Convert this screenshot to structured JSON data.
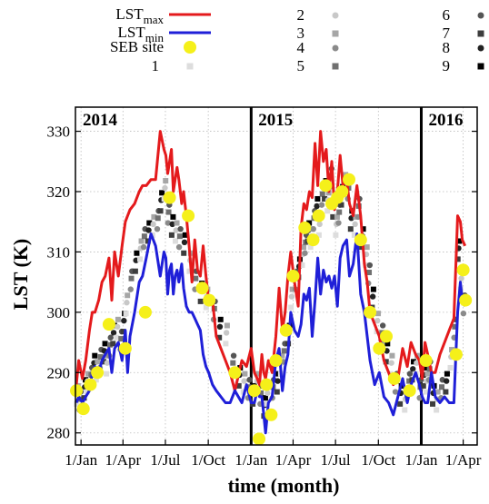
{
  "chart_data": {
    "type": "scatter",
    "xlabel": "time (month)",
    "ylabel": "LST (K)",
    "ylim": [
      278,
      334
    ],
    "xlim": [
      -12,
      850
    ],
    "x_unit": "days",
    "x_tick_labels": [
      {
        "label": "1/Jan",
        "x": 0
      },
      {
        "label": "1/Apr",
        "x": 90
      },
      {
        "label": "1/Jul",
        "x": 181
      },
      {
        "label": "1/Oct",
        "x": 273
      },
      {
        "label": "1/Jan",
        "x": 365
      },
      {
        "label": "1/Apr",
        "x": 455
      },
      {
        "label": "1/Jul",
        "x": 546
      },
      {
        "label": "1/Oct",
        "x": 638
      },
      {
        "label": "1/Jan",
        "x": 730
      },
      {
        "label": "1/Apr",
        "x": 820
      }
    ],
    "y_ticks": [
      280,
      290,
      300,
      310,
      320,
      330
    ],
    "grid": true,
    "year_labels": [
      {
        "label": "2014",
        "x": 0
      },
      {
        "label": "2015",
        "x": 365
      },
      {
        "label": "2016",
        "x": 730
      }
    ],
    "year_boundaries": [
      365,
      730
    ],
    "legend": {
      "placement": "top",
      "lines": [
        {
          "name": "LST",
          "sub": "max",
          "color": "#e41a1c"
        },
        {
          "name": "LST",
          "sub": "min",
          "color": "#1f1fd8"
        }
      ],
      "seb_label": "SEB site",
      "sites": [
        {
          "label": "1",
          "color": "#dddddd",
          "shape": "square"
        },
        {
          "label": "2",
          "color": "#c8c8c8",
          "shape": "circle"
        },
        {
          "label": "3",
          "color": "#a6a6a6",
          "shape": "square"
        },
        {
          "label": "4",
          "color": "#8a8a8a",
          "shape": "circle"
        },
        {
          "label": "5",
          "color": "#707070",
          "shape": "square"
        },
        {
          "label": "6",
          "color": "#555555",
          "shape": "circle"
        },
        {
          "label": "7",
          "color": "#3d3d3d",
          "shape": "square"
        },
        {
          "label": "8",
          "color": "#222222",
          "shape": "circle"
        },
        {
          "label": "9",
          "color": "#000000",
          "shape": "square"
        }
      ]
    },
    "series": [
      {
        "name": "LST max",
        "color": "#e41a1c",
        "x": [
          -10,
          -5,
          3,
          10,
          18,
          24,
          30,
          38,
          45,
          52,
          60,
          66,
          72,
          80,
          88,
          95,
          100,
          105,
          115,
          125,
          132,
          140,
          150,
          160,
          170,
          178,
          182,
          186,
          190,
          194,
          198,
          202,
          206,
          210,
          216,
          220,
          226,
          232,
          238,
          244,
          250,
          256,
          262,
          268,
          274,
          282,
          290,
          300,
          310,
          320,
          330,
          345,
          355,
          365,
          372,
          378,
          383,
          388,
          392,
          396,
          402,
          410,
          418,
          425,
          432,
          438,
          444,
          450,
          458,
          466,
          472,
          478,
          484,
          490,
          496,
          502,
          508,
          514,
          520,
          526,
          532,
          538,
          544,
          550,
          556,
          562,
          570,
          576,
          584,
          592,
          600,
          608,
          614,
          620,
          630,
          640,
          650,
          660,
          670,
          680,
          690,
          700,
          708,
          718,
          726,
          732,
          738,
          744,
          752,
          760,
          770,
          780,
          790,
          800,
          808,
          814,
          818,
          824
        ],
        "values": [
          288,
          292,
          289,
          292,
          297,
          300,
          300,
          302,
          305,
          306,
          309,
          302,
          310,
          306,
          311,
          315,
          316,
          317,
          318,
          320,
          321,
          321,
          322,
          322,
          330,
          327,
          326,
          323,
          325,
          327,
          320,
          322,
          324,
          322,
          318,
          320,
          316,
          311,
          305,
          312,
          307,
          306,
          311,
          306,
          302,
          302,
          296,
          294,
          292,
          290,
          287,
          292,
          291,
          294,
          290,
          289,
          288,
          293,
          290,
          289,
          292,
          290,
          296,
          304,
          297,
          300,
          306,
          310,
          305,
          301,
          314,
          318,
          317,
          320,
          319,
          328,
          321,
          330,
          325,
          327,
          320,
          325,
          317,
          320,
          326,
          321,
          322,
          318,
          316,
          321,
          316,
          308,
          305,
          300,
          298,
          296,
          292,
          290,
          288,
          289,
          294,
          291,
          295,
          293,
          292,
          289,
          295,
          293,
          290,
          290,
          293,
          295,
          297,
          299,
          316,
          315,
          312,
          311
        ]
      },
      {
        "name": "LST min",
        "color": "#1f1fd8",
        "x": [
          -10,
          -5,
          3,
          10,
          18,
          24,
          30,
          38,
          45,
          52,
          60,
          66,
          72,
          80,
          88,
          95,
          100,
          105,
          115,
          125,
          132,
          140,
          150,
          160,
          170,
          178,
          182,
          186,
          190,
          194,
          198,
          202,
          206,
          210,
          216,
          220,
          226,
          232,
          238,
          244,
          250,
          256,
          262,
          268,
          274,
          282,
          290,
          300,
          310,
          320,
          330,
          345,
          355,
          365,
          372,
          378,
          383,
          388,
          392,
          396,
          402,
          410,
          418,
          425,
          432,
          438,
          444,
          450,
          458,
          466,
          472,
          478,
          484,
          490,
          496,
          502,
          508,
          514,
          520,
          526,
          532,
          538,
          544,
          550,
          556,
          562,
          570,
          576,
          584,
          592,
          600,
          608,
          614,
          620,
          630,
          640,
          650,
          660,
          670,
          680,
          690,
          700,
          708,
          718,
          726,
          732,
          738,
          744,
          752,
          760,
          770,
          780,
          790,
          800,
          808,
          814,
          818,
          824
        ],
        "values": [
          285,
          286,
          285,
          286,
          287,
          290,
          291,
          290,
          292,
          293,
          294,
          290,
          294,
          295,
          292,
          297,
          290,
          296,
          300,
          305,
          306,
          309,
          313,
          311,
          306,
          310,
          309,
          303,
          307,
          308,
          303,
          306,
          307,
          305,
          308,
          304,
          301,
          300,
          300,
          299,
          298,
          297,
          293,
          291,
          290,
          288,
          287,
          286,
          285,
          285,
          287,
          285,
          288,
          285,
          285,
          287,
          286,
          286,
          283,
          280,
          285,
          286,
          292,
          294,
          287,
          291,
          293,
          300,
          297,
          296,
          298,
          303,
          302,
          304,
          296,
          302,
          309,
          303,
          307,
          305,
          306,
          304,
          306,
          301,
          309,
          311,
          312,
          306,
          308,
          313,
          303,
          300,
          296,
          292,
          288,
          290,
          286,
          285,
          283,
          286,
          289,
          285,
          288,
          290,
          288,
          286,
          285,
          285,
          290,
          286,
          285,
          286,
          285,
          285,
          300,
          305,
          302,
          301
        ]
      }
    ],
    "seb_site": {
      "name": "SEB site",
      "color": "#f5f01a",
      "x": [
        -10,
        5,
        20,
        35,
        60,
        95,
        138,
        190,
        230,
        260,
        275,
        330,
        372,
        382,
        398,
        408,
        418,
        440,
        455,
        480,
        498,
        510,
        525,
        538,
        550,
        560,
        575,
        600,
        620,
        640,
        655,
        672,
        705,
        740,
        805,
        820,
        825
      ],
      "values": [
        287,
        284,
        288,
        290,
        298,
        294,
        300,
        319,
        316,
        304,
        302,
        290,
        287,
        279,
        288,
        283,
        292,
        297,
        306,
        314,
        312,
        316,
        321,
        318,
        319,
        320,
        322,
        312,
        300,
        294,
        296,
        289,
        287,
        292,
        293,
        307,
        302
      ]
    },
    "sites_scatter": {
      "x": [
        -8,
        -2,
        8,
        14,
        22,
        28,
        34,
        42,
        50,
        56,
        62,
        70,
        78,
        86,
        92,
        98,
        108,
        118,
        128,
        136,
        145,
        155,
        165,
        172,
        180,
        188,
        196,
        204,
        212,
        222,
        234,
        246,
        258,
        270,
        286,
        298,
        312,
        326,
        340,
        350,
        360,
        370,
        378,
        386,
        394,
        400,
        412,
        422,
        430,
        436,
        446,
        452,
        462,
        468,
        476,
        482,
        488,
        494,
        500,
        506,
        512,
        518,
        524,
        530,
        536,
        542,
        548,
        554,
        560,
        566,
        574,
        580,
        588,
        596,
        604,
        612,
        618,
        626,
        636,
        646,
        656,
        666,
        676,
        686,
        696,
        704,
        712,
        720,
        728,
        736,
        742,
        748,
        756,
        764,
        774,
        784,
        794,
        802,
        810,
        816,
        822
      ],
      "values": [
        286,
        285,
        287,
        288,
        289,
        291,
        290,
        292,
        293,
        291,
        294,
        296,
        297,
        295,
        298,
        301,
        305,
        308,
        310,
        312,
        313,
        314,
        315,
        318,
        320,
        316,
        314,
        313,
        312,
        311,
        308,
        305,
        303,
        302,
        300,
        297,
        296,
        291,
        289,
        288,
        287,
        286,
        288,
        286,
        284,
        286,
        287,
        288,
        291,
        293,
        296,
        302,
        305,
        307,
        309,
        311,
        313,
        312,
        315,
        317,
        314,
        319,
        320,
        318,
        322,
        317,
        314,
        316,
        319,
        321,
        320,
        315,
        314,
        317,
        312,
        309,
        306,
        302,
        298,
        296,
        293,
        291,
        288,
        286,
        285,
        288,
        290,
        291,
        287,
        289,
        288,
        290,
        286,
        285,
        287,
        288,
        292,
        297,
        310,
        305,
        301
      ]
    }
  }
}
